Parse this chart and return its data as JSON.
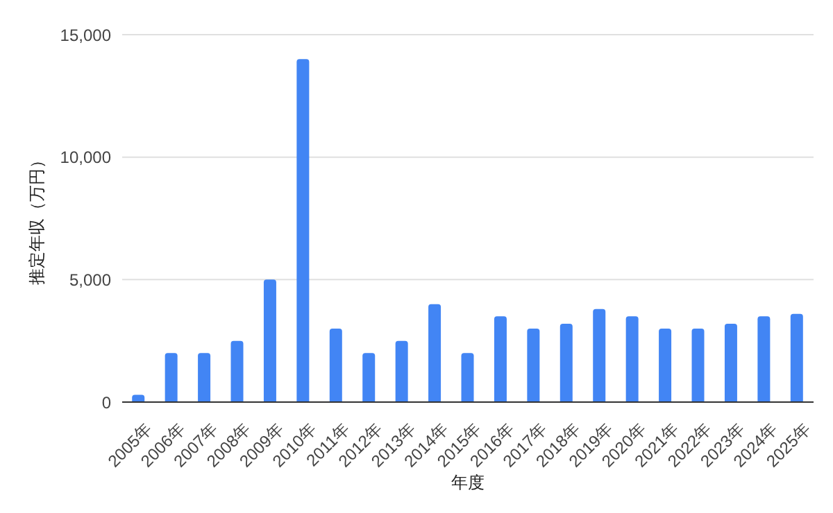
{
  "chart_data": {
    "type": "bar",
    "xlabel": "年度",
    "ylabel": "推定年収（万円）",
    "categories": [
      "2005年",
      "2006年",
      "2007年",
      "2008年",
      "2009年",
      "2010年",
      "2011年",
      "2012年",
      "2013年",
      "2014年",
      "2015年",
      "2016年",
      "2017年",
      "2018年",
      "2019年",
      "2020年",
      "2021年",
      "2022年",
      "2023年",
      "2024年",
      "2025年"
    ],
    "values": [
      300,
      2000,
      2000,
      2500,
      5000,
      14000,
      3000,
      2000,
      2500,
      4000,
      2000,
      3500,
      3000,
      3200,
      3800,
      3500,
      3000,
      3000,
      3200,
      3500,
      3600
    ],
    "color": "#4285f4",
    "ylim": [
      0,
      15000
    ],
    "yticks": [
      {
        "value": 0,
        "label": "0"
      },
      {
        "value": 5000,
        "label": "5,000"
      },
      {
        "value": 10000,
        "label": "10,000"
      },
      {
        "value": 15000,
        "label": "15,000"
      }
    ],
    "grid": "y",
    "legend": false
  }
}
